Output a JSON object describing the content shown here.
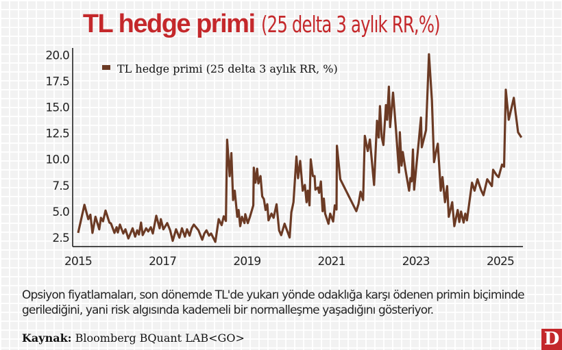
{
  "title": {
    "bold": "TL hedge primi",
    "light": "(25 delta 3 aylık RR,%)"
  },
  "note": "Opsiyon fiyatlamaları, son dönemde TL'de yukarı yönde odaklığa karşı ödenen primin biçiminde gerilediğini, yani risk algısında kademeli bir normalleşme yaşadığını gösteriyor.",
  "source": {
    "label": "Kaynak:",
    "text": "Bloomberg BQuant LAB<GO>"
  },
  "logo": "D",
  "colors": {
    "line": "#6b3a24",
    "title": "#c4282b"
  },
  "chart_data": {
    "type": "line",
    "title": "TL hedge primi (25 delta 3 aylık RR,%)",
    "legend": "top-left",
    "grid": true,
    "xlim": [
      2015,
      2025.5
    ],
    "ylim": [
      2.0,
      20.0
    ],
    "x_ticks": [
      "2015",
      "2017",
      "2019",
      "2021",
      "2023",
      "2025"
    ],
    "y_ticks": [
      "2.5",
      "5.0",
      "7.5",
      "10.0",
      "12.5",
      "15.0",
      "17.5",
      "20.0"
    ],
    "series": [
      {
        "name": "TL hedge primi (25 delta 3 aylık RR, %)",
        "x": [
          2015.0,
          2015.15,
          2015.24,
          2015.29,
          2015.34,
          2015.41,
          2015.5,
          2015.54,
          2015.59,
          2015.65,
          2015.74,
          2015.78,
          2015.86,
          2015.91,
          2015.94,
          2015.99,
          2016.07,
          2016.12,
          2016.19,
          2016.24,
          2016.29,
          2016.35,
          2016.4,
          2016.44,
          2016.49,
          2016.53,
          2016.61,
          2016.66,
          2016.72,
          2016.77,
          2016.85,
          2016.93,
          2016.96,
          2017.02,
          2017.11,
          2017.18,
          2017.24,
          2017.32,
          2017.4,
          2017.46,
          2017.53,
          2017.58,
          2017.64,
          2017.69,
          2017.74,
          2017.85,
          2017.94,
          2017.99,
          2018.04,
          2018.1,
          2018.15,
          2018.25,
          2018.29,
          2018.33,
          2018.4,
          2018.45,
          2018.5,
          2018.53,
          2018.59,
          2018.63,
          2018.67,
          2018.71,
          2018.77,
          2018.8,
          2018.84,
          2018.88,
          2018.94,
          2018.96,
          2019.02,
          2019.07,
          2019.15,
          2019.16,
          2019.2,
          2019.24,
          2019.27,
          2019.32,
          2019.36,
          2019.4,
          2019.44,
          2019.48,
          2019.51,
          2019.58,
          2019.63,
          2019.7,
          2019.76,
          2019.81,
          2019.89,
          2020.01,
          2020.05,
          2020.1,
          2020.17,
          2020.21,
          2020.26,
          2020.32,
          2020.37,
          2020.41,
          2020.44,
          2020.48,
          2020.51,
          2020.56,
          2020.6,
          2020.62,
          2020.68,
          2020.71,
          2020.75,
          2020.79,
          2020.82,
          2020.85,
          2020.93,
          2020.97,
          2021.04,
          2021.08,
          2021.12,
          2021.13,
          2021.21,
          2021.59,
          2021.64,
          2021.69,
          2021.75,
          2021.79,
          2021.86,
          2021.91,
          2022.01,
          2022.08,
          2022.12,
          2022.15,
          2022.19,
          2022.23,
          2022.29,
          2022.32,
          2022.36,
          2022.39,
          2022.46,
          2022.53,
          2022.6,
          2022.62,
          2022.66,
          2022.69,
          2022.76,
          2022.84,
          2022.87,
          2022.9,
          2022.93,
          2022.96,
          2023.01,
          2023.07,
          2023.12,
          2023.14,
          2023.24,
          2023.31,
          2023.38,
          2023.43,
          2023.48,
          2023.52,
          2023.59,
          2023.63,
          2023.69,
          2023.74,
          2023.78,
          2023.86,
          2023.91,
          2023.99,
          2024.03,
          2024.07,
          2024.13,
          2024.17,
          2024.21,
          2024.33,
          2024.39,
          2024.46,
          2024.54,
          2024.6,
          2024.69,
          2024.8,
          2024.83,
          2024.91,
          2024.96,
          2025.04,
          2025.09,
          2025.13,
          2025.2,
          2025.32,
          2025.36,
          2025.42,
          2025.5
        ],
        "y": [
          2.96,
          5.65,
          4.27,
          4.7,
          2.96,
          4.5,
          3.3,
          4.4,
          4.07,
          5.1,
          3.95,
          3.85,
          2.96,
          3.5,
          3.0,
          3.75,
          2.9,
          3.3,
          2.43,
          2.9,
          3.4,
          2.6,
          3.2,
          2.8,
          3.95,
          2.75,
          3.4,
          3.1,
          3.5,
          2.9,
          4.6,
          3.4,
          4.27,
          3.3,
          3.9,
          3.2,
          2.2,
          3.3,
          2.5,
          3.4,
          2.6,
          3.3,
          2.7,
          3.4,
          3.75,
          3.2,
          2.3,
          2.9,
          3.2,
          2.7,
          2.9,
          2.1,
          3.2,
          4.27,
          3.7,
          4.55,
          4.1,
          11.88,
          8.4,
          10.6,
          6.1,
          7.0,
          4.5,
          5.15,
          3.6,
          4.5,
          3.9,
          4.75,
          3.9,
          4.5,
          5.6,
          9.2,
          7.77,
          9.1,
          7.7,
          8.4,
          6.45,
          6.2,
          5.15,
          5.7,
          4.16,
          4.8,
          4.4,
          5.7,
          3.2,
          2.74,
          3.83,
          2.52,
          4.93,
          5.9,
          10.27,
          8.2,
          9.85,
          7.0,
          7.55,
          5.9,
          7.0,
          5.6,
          10.0,
          8.4,
          8.4,
          7.1,
          7.3,
          6.8,
          7.88,
          5.04,
          6.24,
          4.8,
          3.83,
          4.8,
          4.05,
          5.6,
          5.2,
          11.3,
          8.1,
          5.04,
          5.7,
          6.9,
          6.1,
          12.26,
          10.8,
          11.9,
          7.55,
          13.7,
          12.1,
          15.1,
          12.15,
          11.38,
          15.2,
          13.8,
          16.96,
          13.1,
          16.4,
          12.8,
          8.75,
          12.6,
          9.4,
          10.7,
          8.86,
          7.0,
          8.2,
          7.9,
          10.94,
          7.1,
          9.3,
          11.8,
          14.0,
          11.16,
          12.8,
          20.07,
          15.65,
          9.74,
          10.8,
          11.5,
          7.0,
          8.3,
          5.9,
          7.44,
          4.5,
          5.9,
          3.6,
          5.15,
          4.0,
          5.0,
          3.95,
          4.8,
          4.16,
          7.77,
          7.0,
          8.1,
          7.1,
          6.57,
          8.1,
          7.44,
          9.0,
          8.5,
          8.3,
          9.5,
          9.3,
          16.67,
          13.8,
          15.9,
          14.5,
          12.6,
          12.1
        ]
      }
    ]
  }
}
